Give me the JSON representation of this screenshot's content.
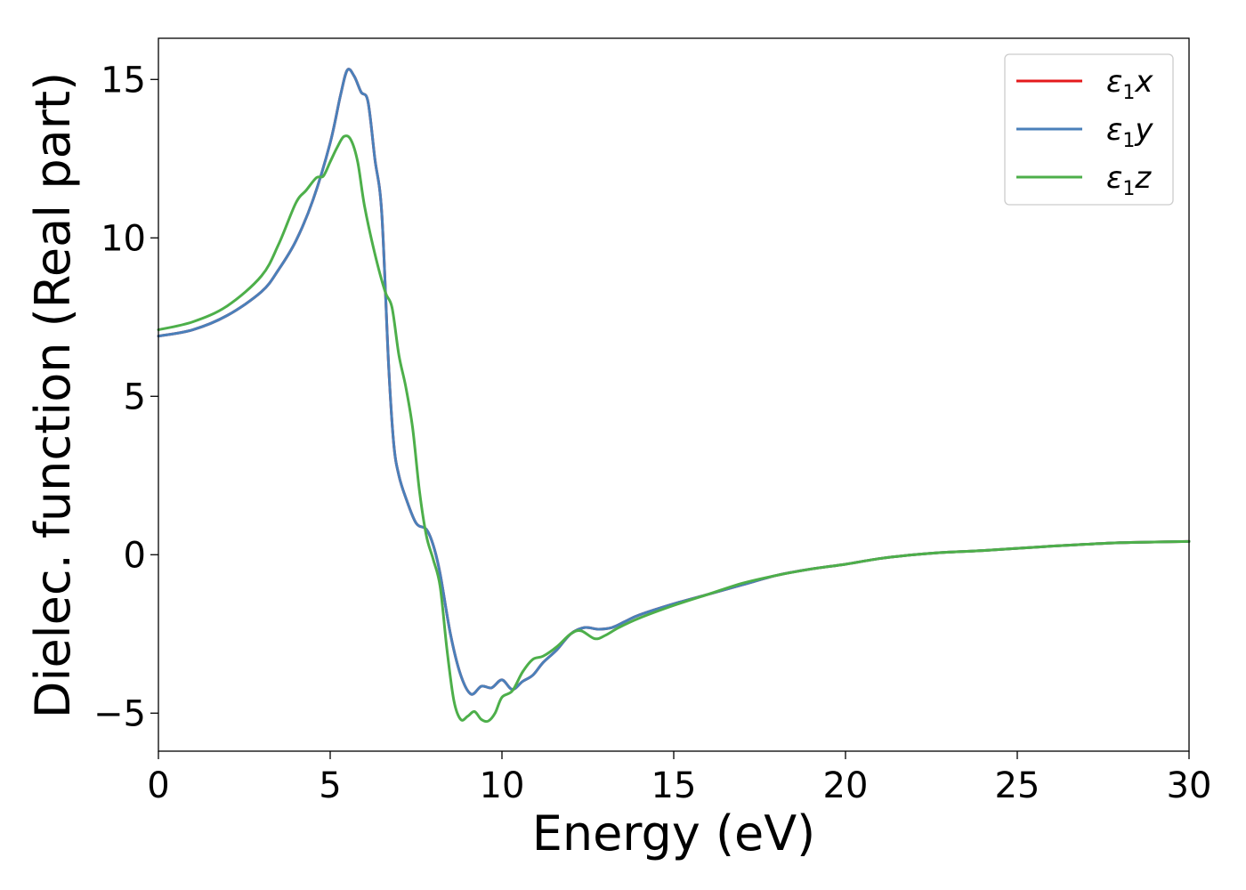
{
  "chart_data": {
    "type": "line",
    "title": "",
    "xlabel": "Energy (eV)",
    "ylabel": "Dielec. function (Real part)",
    "xlim": [
      0,
      30
    ],
    "ylim": [
      -6.2,
      16.3
    ],
    "xticks": [
      {
        "value": 0,
        "label": "0"
      },
      {
        "value": 5,
        "label": "5"
      },
      {
        "value": 10,
        "label": "10"
      },
      {
        "value": 15,
        "label": "15"
      },
      {
        "value": 20,
        "label": "20"
      },
      {
        "value": 25,
        "label": "25"
      },
      {
        "value": 30,
        "label": "30"
      }
    ],
    "yticks": [
      {
        "value": -5,
        "label": "−5"
      },
      {
        "value": 0,
        "label": "0"
      },
      {
        "value": 5,
        "label": "5"
      },
      {
        "value": 10,
        "label": "10"
      },
      {
        "value": 15,
        "label": "15"
      }
    ],
    "grid": false,
    "legend": "top-right",
    "series": [
      {
        "name": "x",
        "symbol": "ε",
        "subscript": "1",
        "color": "#e41a1c",
        "x": [
          0,
          1,
          2,
          3,
          3.5,
          4,
          4.5,
          5,
          5.3,
          5.5,
          5.7,
          5.9,
          6.1,
          6.3,
          6.5,
          6.7,
          6.85,
          7.0,
          7.2,
          7.5,
          7.8,
          8.0,
          8.2,
          8.5,
          8.8,
          9.1,
          9.4,
          9.7,
          10.0,
          10.3,
          10.6,
          10.9,
          11.2,
          11.6,
          12.0,
          12.4,
          12.8,
          13.2,
          13.6,
          14.0,
          15,
          16,
          17,
          18,
          19,
          20,
          21,
          22,
          23,
          24,
          25,
          26,
          27,
          28,
          29,
          30
        ],
        "values": [
          6.9,
          7.1,
          7.55,
          8.3,
          9.0,
          9.9,
          11.2,
          13.0,
          14.5,
          15.3,
          15.1,
          14.6,
          14.3,
          12.5,
          10.8,
          6.0,
          3.5,
          2.5,
          1.8,
          1.0,
          0.8,
          0.3,
          -0.6,
          -2.5,
          -3.8,
          -4.4,
          -4.15,
          -4.2,
          -3.95,
          -4.25,
          -4.0,
          -3.8,
          -3.4,
          -3.0,
          -2.5,
          -2.3,
          -2.35,
          -2.3,
          -2.1,
          -1.9,
          -1.55,
          -1.25,
          -0.95,
          -0.65,
          -0.45,
          -0.3,
          -0.12,
          0.0,
          0.08,
          0.13,
          0.2,
          0.27,
          0.33,
          0.38,
          0.4,
          0.42
        ]
      },
      {
        "name": "y",
        "symbol": "ε",
        "subscript": "1",
        "color": "#4a80ba",
        "x": [
          0,
          1,
          2,
          3,
          3.5,
          4,
          4.5,
          5,
          5.3,
          5.5,
          5.7,
          5.9,
          6.1,
          6.3,
          6.5,
          6.7,
          6.85,
          7.0,
          7.2,
          7.5,
          7.8,
          8.0,
          8.2,
          8.5,
          8.8,
          9.1,
          9.4,
          9.7,
          10.0,
          10.3,
          10.6,
          10.9,
          11.2,
          11.6,
          12.0,
          12.4,
          12.8,
          13.2,
          13.6,
          14.0,
          15,
          16,
          17,
          18,
          19,
          20,
          21,
          22,
          23,
          24,
          25,
          26,
          27,
          28,
          29,
          30
        ],
        "values": [
          6.9,
          7.1,
          7.55,
          8.3,
          9.0,
          9.9,
          11.2,
          13.0,
          14.5,
          15.3,
          15.1,
          14.6,
          14.3,
          12.5,
          10.8,
          6.0,
          3.5,
          2.5,
          1.8,
          1.0,
          0.8,
          0.3,
          -0.6,
          -2.5,
          -3.8,
          -4.4,
          -4.15,
          -4.2,
          -3.95,
          -4.25,
          -4.0,
          -3.8,
          -3.4,
          -3.0,
          -2.5,
          -2.3,
          -2.35,
          -2.3,
          -2.1,
          -1.9,
          -1.55,
          -1.25,
          -0.95,
          -0.65,
          -0.45,
          -0.3,
          -0.12,
          0.0,
          0.08,
          0.13,
          0.2,
          0.27,
          0.33,
          0.38,
          0.4,
          0.42
        ]
      },
      {
        "name": "z",
        "symbol": "ε",
        "subscript": "1",
        "color": "#4daf4a",
        "x": [
          0,
          1,
          2,
          3,
          3.5,
          4,
          4.3,
          4.6,
          4.8,
          5.0,
          5.2,
          5.4,
          5.6,
          5.8,
          6.0,
          6.3,
          6.6,
          6.8,
          7.0,
          7.2,
          7.4,
          7.6,
          7.8,
          8.0,
          8.2,
          8.4,
          8.6,
          8.8,
          9.0,
          9.2,
          9.4,
          9.6,
          9.8,
          10.0,
          10.3,
          10.6,
          10.9,
          11.2,
          11.6,
          12.0,
          12.3,
          12.7,
          13.0,
          13.4,
          14.0,
          15,
          16,
          17,
          18,
          19,
          20,
          21,
          22,
          23,
          24,
          25,
          26,
          27,
          28,
          29,
          30
        ],
        "values": [
          7.1,
          7.35,
          7.85,
          8.8,
          9.8,
          11.1,
          11.5,
          11.9,
          11.95,
          12.4,
          12.85,
          13.2,
          13.1,
          12.4,
          11.0,
          9.5,
          8.3,
          7.8,
          6.3,
          5.3,
          4.0,
          2.0,
          0.6,
          -0.15,
          -1.0,
          -3.0,
          -4.6,
          -5.2,
          -5.1,
          -4.95,
          -5.2,
          -5.25,
          -5.0,
          -4.5,
          -4.3,
          -3.7,
          -3.3,
          -3.2,
          -2.9,
          -2.5,
          -2.4,
          -2.65,
          -2.55,
          -2.3,
          -2.0,
          -1.6,
          -1.25,
          -0.9,
          -0.65,
          -0.45,
          -0.3,
          -0.12,
          0.0,
          0.08,
          0.13,
          0.2,
          0.27,
          0.33,
          0.38,
          0.4,
          0.42
        ]
      }
    ]
  }
}
